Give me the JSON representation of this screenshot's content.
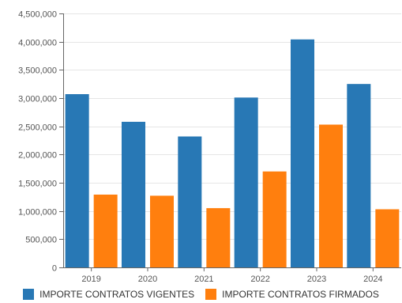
{
  "chart_data": {
    "type": "bar",
    "categories": [
      "2019",
      "2020",
      "2021",
      "2022",
      "2023",
      "2024"
    ],
    "series": [
      {
        "name": "IMPORTE CONTRATOS VIGENTES",
        "color": "#2878b5",
        "values": [
          3070000,
          2580000,
          2320000,
          3010000,
          4040000,
          3250000
        ]
      },
      {
        "name": "IMPORTE CONTRATOS FIRMADOS",
        "color": "#ff7f0e",
        "values": [
          1290000,
          1270000,
          1050000,
          1700000,
          2530000,
          1030000
        ]
      }
    ],
    "y_ticks": [
      "0",
      "500,000",
      "1,000,000",
      "1,500,000",
      "2,000,000",
      "2,500,000",
      "3,000,000",
      "3,500,000",
      "4,000,000",
      "4,500,000"
    ],
    "ylim": [
      0,
      4500000
    ],
    "title": "",
    "xlabel": "",
    "ylabel": "",
    "grid": true,
    "legend_position": "bottom"
  }
}
